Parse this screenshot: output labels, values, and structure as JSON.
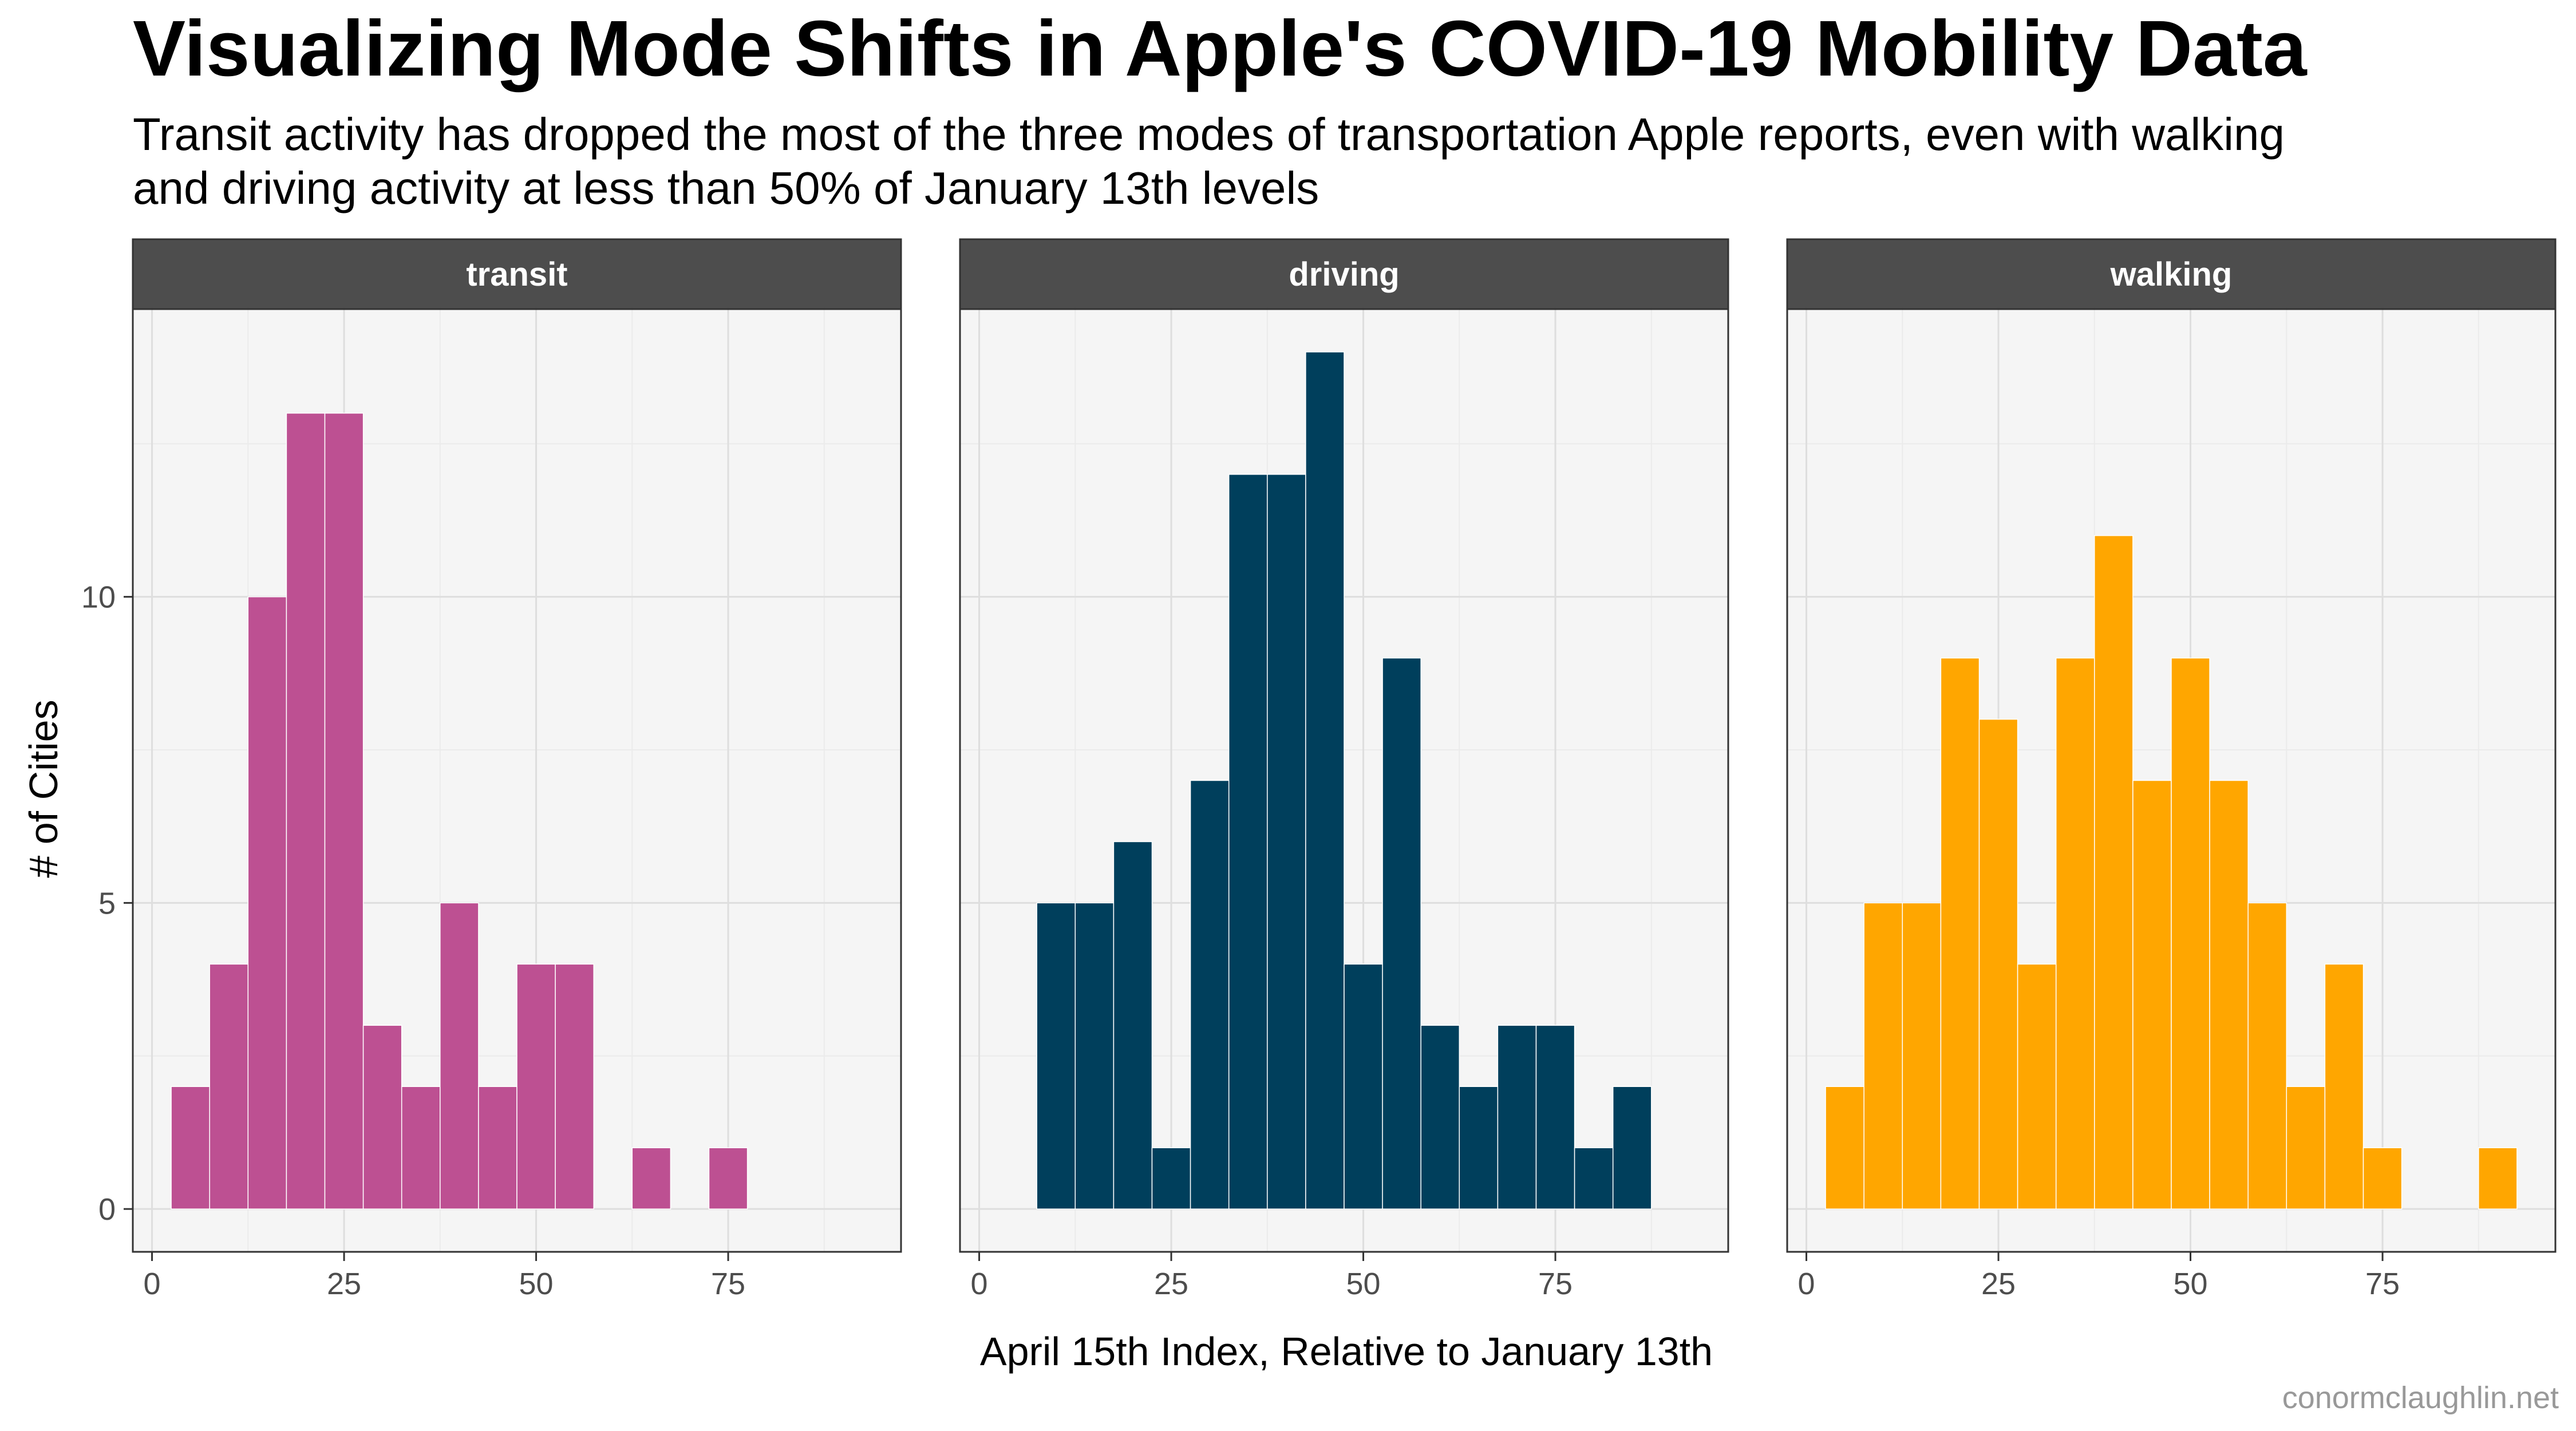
{
  "title": "Visualizing Mode Shifts in Apple's COVID-19 Mobility Data",
  "subtitle_lines": [
    "Transit activity has dropped the most of the three modes of transportation Apple reports, even with walking",
    "and driving activity at less than 50% of January 13th levels"
  ],
  "caption": "conormclaughlin.net",
  "chart_data": {
    "type": "bar",
    "subtype": "faceted histogram",
    "xlabel": "April 15th Index, Relative to January 13th",
    "ylabel": "# of Cities",
    "x_ticks": [
      0,
      25,
      50,
      75
    ],
    "y_ticks": [
      0,
      5,
      10
    ],
    "xlim": [
      -2.5,
      97.5
    ],
    "ylim": [
      -0.7,
      14.7
    ],
    "bin_width": 5,
    "bin_centers": [
      5,
      10,
      15,
      20,
      25,
      30,
      35,
      40,
      45,
      50,
      55,
      60,
      65,
      70,
      75,
      80,
      85,
      90
    ],
    "grid": true,
    "legend": "none",
    "panel_background": "#f5f5f5",
    "strip_background": "#4d4d4d",
    "facets": [
      {
        "name": "transit",
        "color": "#bd5092",
        "counts": [
          2,
          4,
          10,
          13,
          13,
          3,
          2,
          5,
          2,
          4,
          4,
          0,
          1,
          0,
          1,
          0,
          0,
          0
        ]
      },
      {
        "name": "driving",
        "color": "#003f5c",
        "counts": [
          0,
          5,
          5,
          6,
          1,
          7,
          12,
          12,
          14,
          4,
          9,
          3,
          2,
          3,
          3,
          1,
          2,
          0
        ]
      },
      {
        "name": "walking",
        "color": "#ffa600",
        "counts": [
          2,
          5,
          5,
          9,
          8,
          4,
          9,
          11,
          7,
          9,
          7,
          5,
          2,
          4,
          1,
          0,
          0,
          1
        ]
      }
    ]
  }
}
